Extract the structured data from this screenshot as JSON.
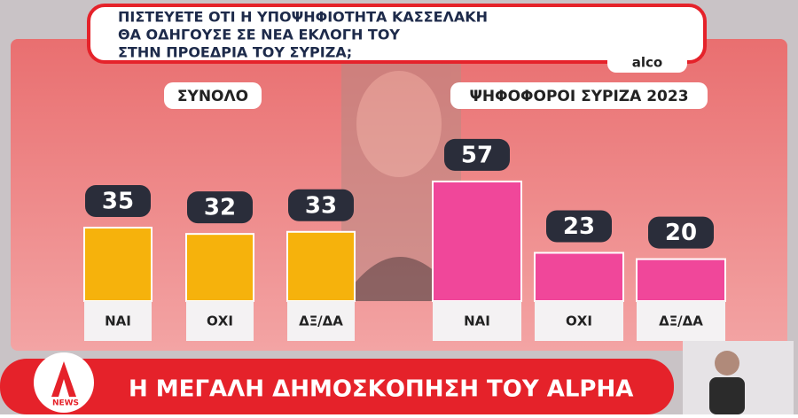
{
  "title_lines": [
    "ΠΙΣΤΕΥΕΤΕ ΟΤΙ Η ΥΠΟΨΗΦΙΟΤΗΤΑ ΚΑΣΣΕΛΑΚΗ",
    "ΘΑ ΟΔΗΓΟΥΣΕ ΣΕ ΝΕΑ ΕΚΛΟΓΗ ΤΟΥ",
    "ΣΤΗΝ ΠΡΟΕΔΡΙΑ ΤΟΥ ΣΥΡΙΖΑ;"
  ],
  "source": "alco",
  "chart_data": [
    {
      "type": "bar",
      "title": "ΣΥΝΟΛΟ",
      "categories": [
        "ΝΑΙ",
        "ΟΧΙ",
        "ΔΞ/ΔΑ"
      ],
      "values": [
        35,
        32,
        33
      ],
      "color": "#f6b20c"
    },
    {
      "type": "bar",
      "title": "ΨΗΦΟΦΟΡΟΙ ΣΥΡΙΖΑ 2023",
      "categories": [
        "ΝΑΙ",
        "ΟΧΙ",
        "ΔΞ/ΔΑ"
      ],
      "values": [
        57,
        23,
        20
      ],
      "color": "#f0479a"
    }
  ],
  "footer": {
    "headline": "Η ΜΕΓΑΛΗ ΔΗΜΟΣΚΟΠΗΣΗ ΤΟΥ ALPHA",
    "logo": "NEWS"
  }
}
